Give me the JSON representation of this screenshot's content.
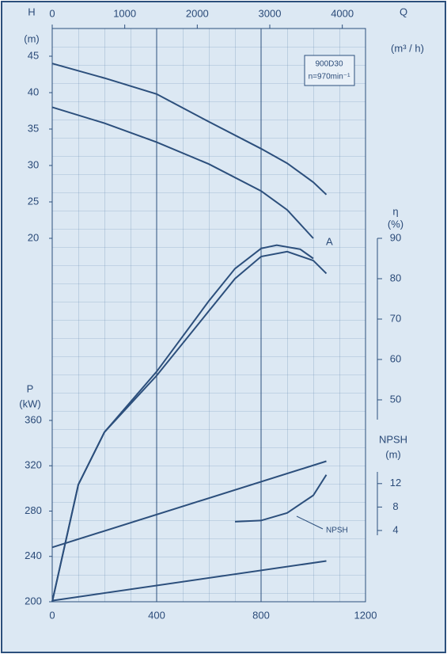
{
  "chart_data": {
    "type": "line",
    "xlim": [
      0,
      1200
    ],
    "xticks": [
      0,
      400,
      800,
      1200
    ],
    "x2": {
      "label": "Q",
      "unit": "(m³ / h)",
      "lim": [
        0,
        4320
      ],
      "ticks": [
        0,
        1000,
        2000,
        3000,
        4000
      ]
    },
    "axes": {
      "h": {
        "label": "H",
        "unit": "(m)",
        "lim": [
          20,
          45
        ],
        "ticks": [
          20,
          25,
          30,
          35,
          40,
          45
        ]
      },
      "p": {
        "label": "P",
        "unit": "(kW)",
        "lim": [
          200,
          360
        ],
        "ticks": [
          200,
          240,
          280,
          320,
          360
        ]
      },
      "eta": {
        "label": "η",
        "unit": "(%)",
        "lim": [
          0,
          90
        ],
        "ticks": [
          50,
          60,
          70,
          80,
          90
        ]
      },
      "npsh": {
        "label": "NPSH",
        "unit": "(m)",
        "lim": [
          4,
          14
        ],
        "ticks": [
          4,
          8,
          12
        ]
      }
    },
    "model": "900D30",
    "speed": "n=970min⁻¹",
    "annotations": [
      "A",
      "NPSH"
    ],
    "color": "#2c4f7c",
    "grid": true,
    "series": [
      {
        "axis": "h",
        "x": [
          0,
          200,
          400,
          600,
          800,
          900,
          1000,
          1050
        ],
        "values": [
          44,
          42,
          39.8,
          36,
          32.3,
          30.3,
          27.7,
          26
        ]
      },
      {
        "axis": "h",
        "x": [
          0,
          200,
          400,
          600,
          800,
          900,
          1000
        ],
        "values": [
          38,
          35.8,
          33.2,
          30.2,
          26.5,
          23.9,
          20
        ]
      },
      {
        "axis": "eta",
        "x": [
          0,
          100,
          200,
          400,
          600,
          700,
          800,
          860,
          950,
          1000
        ],
        "values": [
          0,
          29,
          42,
          57,
          74.5,
          82.5,
          87.5,
          88.3,
          87.3,
          85
        ]
      },
      {
        "axis": "eta",
        "x": [
          0,
          100,
          200,
          400,
          600,
          700,
          800,
          900,
          1000,
          1050
        ],
        "values": [
          0,
          29,
          42,
          56,
          72,
          80,
          85.5,
          86.7,
          84.5,
          81.3
        ]
      },
      {
        "axis": "p",
        "x": [
          0,
          1050
        ],
        "values": [
          248,
          324
        ]
      },
      {
        "axis": "p",
        "x": [
          0,
          1050
        ],
        "values": [
          201,
          236
        ]
      },
      {
        "axis": "npsh",
        "x": [
          700,
          800,
          900,
          1000,
          1050
        ],
        "values": [
          5.5,
          5.7,
          7,
          10,
          13.5
        ]
      }
    ]
  }
}
